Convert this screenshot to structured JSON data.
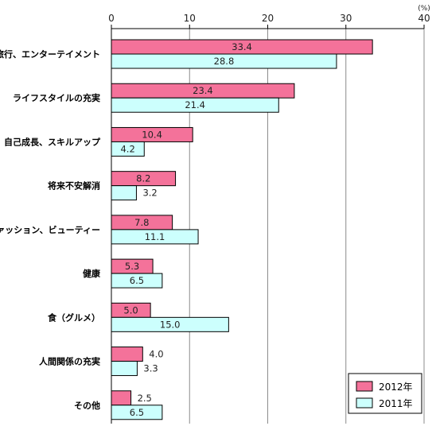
{
  "chart_data": {
    "type": "bar",
    "orientation": "horizontal",
    "unit": "(%)",
    "xlim": [
      0,
      40
    ],
    "ticks": [
      0,
      10,
      20,
      30,
      40
    ],
    "grid": "vertical",
    "legend_position": "bottom-right",
    "categories": [
      "旅行、エンターテイメント",
      "ライフスタイルの充実",
      "自己成長、スキルアップ",
      "将来不安解消",
      "ファッション、ビューティー",
      "健康",
      "食（グルメ）",
      "人間関係の充実",
      "その他"
    ],
    "series": [
      {
        "name": "2012年",
        "color": "#f4729a",
        "values": [
          33.4,
          23.4,
          10.4,
          8.2,
          7.8,
          5.3,
          5.0,
          4.0,
          2.5
        ]
      },
      {
        "name": "2011年",
        "color": "#ccfffd",
        "values": [
          28.8,
          21.4,
          4.2,
          3.2,
          11.1,
          6.5,
          15.0,
          3.3,
          6.5
        ]
      }
    ]
  }
}
